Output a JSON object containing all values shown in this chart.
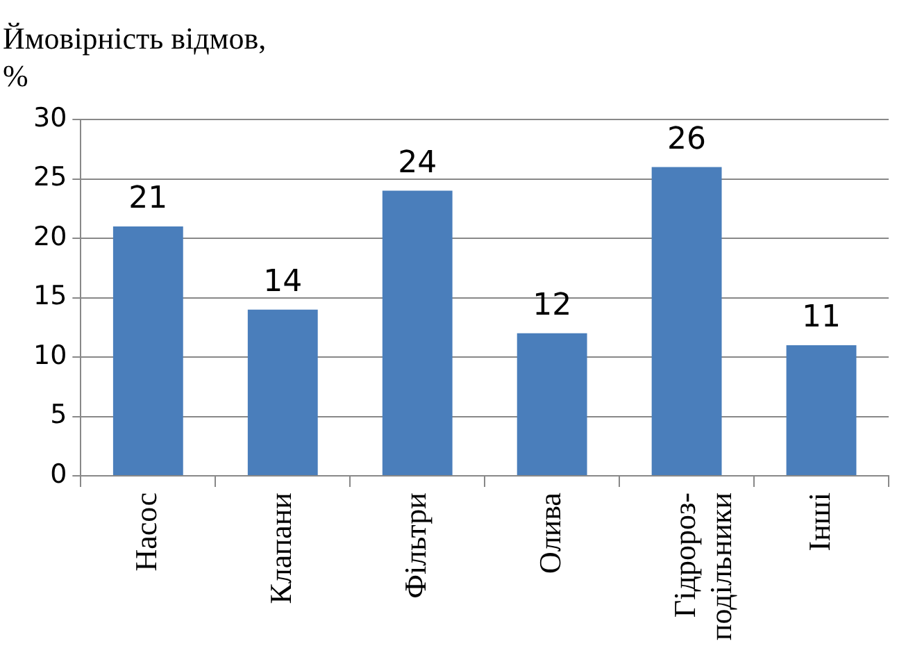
{
  "chart_data": {
    "type": "bar",
    "ylabel": "Ймовірність відмов, %",
    "categories": [
      "Насос",
      "Клапани",
      "Фільтри",
      "Олива",
      "Гідророз-подільники",
      "Інші"
    ],
    "values": [
      21,
      14,
      24,
      12,
      26,
      11
    ],
    "color": "#4a7ebb",
    "ylim": [
      0,
      30
    ],
    "yticks": [
      0,
      5,
      10,
      15,
      20,
      25,
      30
    ],
    "grid": "y",
    "data_labels": true,
    "legend": false
  }
}
